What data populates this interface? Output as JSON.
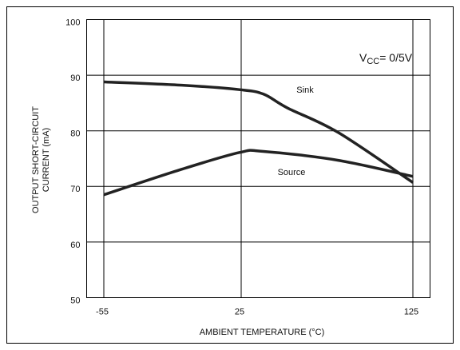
{
  "chart_data": {
    "type": "line",
    "xlabel": "AMBIENT TEMPERATURE (°C)",
    "ylabel": [
      "OUTPUT SHORT-CIRCUIT",
      "CURRENT (mA)"
    ],
    "xlim": [
      -65,
      135
    ],
    "ylim": [
      50,
      100
    ],
    "xticks": [
      -55,
      25,
      125
    ],
    "yticks": [
      50,
      60,
      70,
      80,
      90,
      100
    ],
    "grid": true,
    "annotation": {
      "main": "V",
      "sub": "CC",
      "rest": "= 0/5V"
    },
    "series": [
      {
        "name": "Sink",
        "color": "#222222",
        "x": [
          -55,
          -9.5,
          24,
          38,
          52,
          81.5,
          125
        ],
        "values": [
          88.8,
          88.2,
          87.4,
          86.6,
          84.1,
          79.7,
          70.7
        ]
      },
      {
        "name": "Source",
        "color": "#222222",
        "x": [
          -55,
          -9.5,
          24,
          38,
          81.5,
          125
        ],
        "values": [
          68.5,
          73.1,
          76.1,
          76.3,
          74.7,
          71.8
        ]
      }
    ]
  }
}
